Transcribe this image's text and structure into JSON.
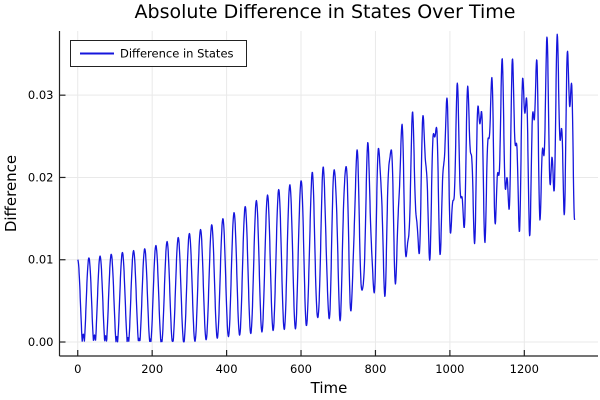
{
  "chart_data": {
    "type": "line",
    "title": "Absolute Difference in States Over Time",
    "xlabel": "Time",
    "ylabel": "Difference",
    "xlim": [
      -49,
      1398
    ],
    "ylim": [
      -0.0017,
      0.0378
    ],
    "xticks": [
      0,
      200,
      400,
      600,
      800,
      1000,
      1200
    ],
    "yticks": [
      0,
      0.01,
      0.02,
      0.03
    ],
    "ytick_labels": [
      "0.00",
      "0.01",
      "0.02",
      "0.03"
    ],
    "grid": true,
    "legend_position": "top-left",
    "style": {
      "background": "#ffffff",
      "grid_color": "#e9e9e9",
      "spine_color": "#222222",
      "text_color": "#000000",
      "legend_border": "#222222",
      "legend_bg": "#ffffff"
    },
    "series": [
      {
        "name": "Difference in States",
        "color": "#1515dc",
        "line_width": 1.3,
        "t_start": 0,
        "t_end": 1335,
        "t_step": 0.75,
        "start_value": 0.01,
        "end_value": 0.018,
        "max_value": 0.0369,
        "period": 30,
        "phase": 1.5707963,
        "ripple_period": 13.4,
        "ripple_phase": 0.8,
        "ripple_max": 0.0048,
        "ripple_onset": 560,
        "ripple_amp_tradeoff": 0.55,
        "early_fold_excess": 0.0012,
        "early_fold_end": 520,
        "peak_envelope": {
          "t": [
            0,
            190,
            350,
            480,
            620,
            800,
            960,
            1065,
            1190,
            1340
          ],
          "v": [
            0.01,
            0.0114,
            0.014,
            0.0172,
            0.0203,
            0.0242,
            0.0288,
            0.0312,
            0.034,
            0.0368
          ]
        },
        "min_envelope": {
          "t": [
            0,
            300,
            500,
            620,
            720,
            820,
            950,
            1100,
            1250,
            1335
          ],
          "v": [
            0.0002,
            0.0005,
            0.0013,
            0.0018,
            0.0032,
            0.006,
            0.011,
            0.0135,
            0.015,
            0.017
          ]
        }
      }
    ]
  }
}
